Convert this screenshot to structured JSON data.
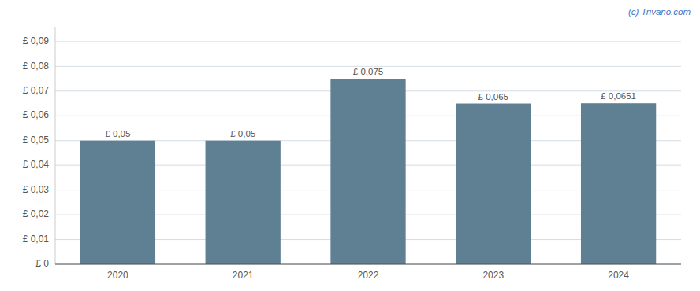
{
  "chart_data": {
    "type": "bar",
    "categories": [
      "2020",
      "2021",
      "2022",
      "2023",
      "2024"
    ],
    "values": [
      0.05,
      0.05,
      0.075,
      0.065,
      0.0651
    ],
    "value_labels": [
      "£ 0,05",
      "£ 0,05",
      "£ 0,075",
      "£ 0,065",
      "£ 0,0651"
    ],
    "color": "#5f7f93",
    "ylim": [
      0,
      0.096
    ],
    "yticks": [
      {
        "value": 0,
        "label": "£ 0"
      },
      {
        "value": 0.01,
        "label": "£ 0,01"
      },
      {
        "value": 0.02,
        "label": "£ 0,02"
      },
      {
        "value": 0.03,
        "label": "£ 0,03"
      },
      {
        "value": 0.04,
        "label": "£ 0,04"
      },
      {
        "value": 0.05,
        "label": "£ 0,05"
      },
      {
        "value": 0.06,
        "label": "£ 0,06"
      },
      {
        "value": 0.07,
        "label": "£ 0,07"
      },
      {
        "value": 0.08,
        "label": "£ 0,08"
      },
      {
        "value": 0.09,
        "label": "£ 0,09"
      }
    ],
    "grid": true,
    "data_labels": true,
    "annotations": [
      "(c) Trivano.com"
    ]
  }
}
